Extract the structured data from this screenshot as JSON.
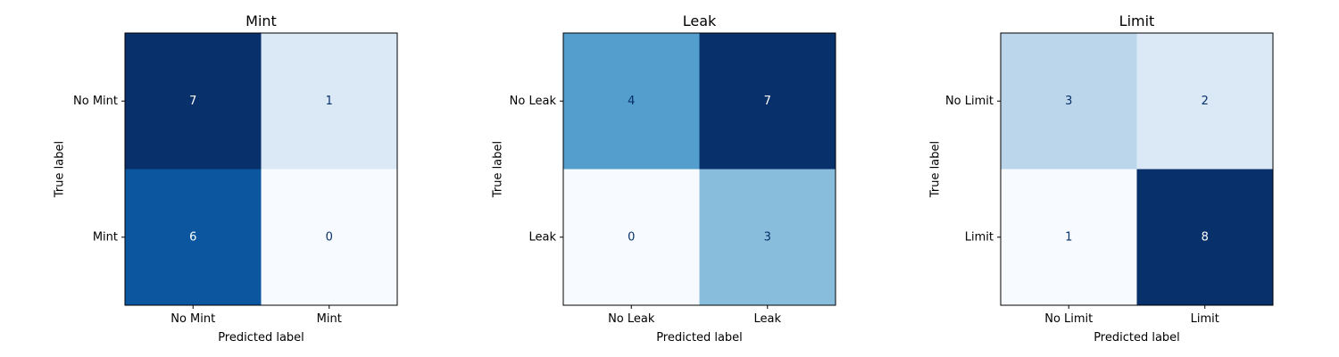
{
  "chart_data": [
    {
      "type": "heatmap",
      "title": "Mint",
      "xlabel": "Predicted label",
      "ylabel": "True label",
      "x_categories": [
        "No Mint",
        "Mint"
      ],
      "y_categories": [
        "No Mint",
        "Mint"
      ],
      "values": [
        [
          7,
          1
        ],
        [
          6,
          0
        ]
      ],
      "colormap": "Blues"
    },
    {
      "type": "heatmap",
      "title": "Leak",
      "xlabel": "Predicted label",
      "ylabel": "True label",
      "x_categories": [
        "No Leak",
        "Leak"
      ],
      "y_categories": [
        "No Leak",
        "Leak"
      ],
      "values": [
        [
          4,
          7
        ],
        [
          0,
          3
        ]
      ],
      "colormap": "Blues"
    },
    {
      "type": "heatmap",
      "title": "Limit",
      "xlabel": "Predicted label",
      "ylabel": "True label",
      "x_categories": [
        "No Limit",
        "Limit"
      ],
      "y_categories": [
        "No Limit",
        "Limit"
      ],
      "values": [
        [
          3,
          2
        ],
        [
          1,
          8
        ]
      ],
      "colormap": "Blues"
    }
  ]
}
